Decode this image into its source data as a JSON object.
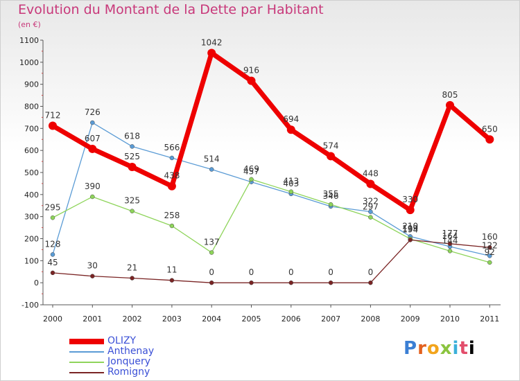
{
  "chart_data": {
    "type": "line",
    "title": "Evolution du Montant de la Dette par Habitant",
    "subtitle": "(en €)",
    "x": [
      "2000",
      "2001",
      "2002",
      "2003",
      "2004",
      "2005",
      "2006",
      "2007",
      "2008",
      "2009",
      "2010",
      "2011"
    ],
    "ylim": [
      -100,
      1100
    ],
    "yticks": [
      -100,
      0,
      100,
      200,
      300,
      400,
      500,
      600,
      700,
      800,
      900,
      1000,
      1100
    ],
    "grid": false,
    "legend_position": "bottom-left",
    "series": [
      {
        "name": "OLIZY",
        "color": "#ee0000",
        "values": [
          712,
          607,
          525,
          438,
          1042,
          916,
          694,
          574,
          448,
          330,
          805,
          650
        ]
      },
      {
        "name": "Anthenay",
        "color": "#5a9bd5",
        "values": [
          128,
          726,
          618,
          566,
          514,
          457,
          403,
          346,
          322,
          210,
          164,
          122
        ]
      },
      {
        "name": "Jonquery",
        "color": "#8ed45a",
        "values": [
          295,
          390,
          325,
          258,
          137,
          469,
          413,
          355,
          297,
          199,
          144,
          92
        ]
      },
      {
        "name": "Romigny",
        "color": "#7a2424",
        "values": [
          45,
          30,
          21,
          11,
          0,
          0,
          0,
          0,
          0,
          194,
          177,
          160
        ]
      }
    ]
  },
  "logo": {
    "letters": [
      "P",
      "r",
      "o",
      "x",
      "i",
      "t",
      "i"
    ],
    "text": "Proxiti"
  }
}
